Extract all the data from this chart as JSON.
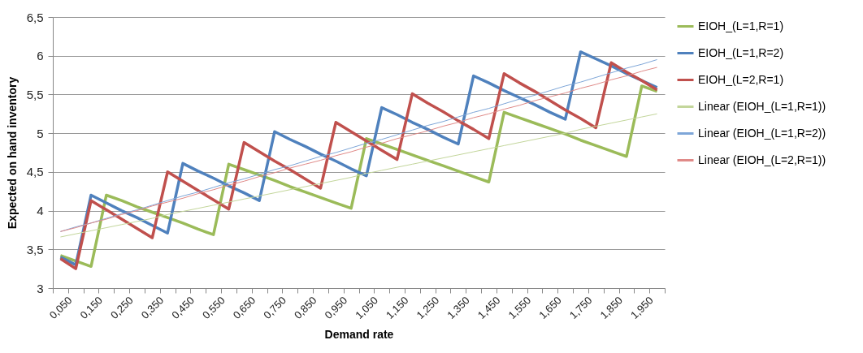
{
  "chart_data": {
    "type": "line",
    "xlabel": "Demand rate",
    "ylabel": "Expected on hand inventory",
    "categories": [
      "0,050",
      null,
      "0,150",
      null,
      "0,250",
      null,
      "0,350",
      null,
      "0,450",
      null,
      "0,550",
      null,
      "0,650",
      null,
      "0,750",
      null,
      "0,850",
      null,
      "0,950",
      null,
      "1,050",
      null,
      "1,150",
      null,
      "1,250",
      null,
      "1,350",
      null,
      "1,450",
      null,
      "1,550",
      null,
      "1,650",
      null,
      "1,750",
      null,
      "1,850",
      null,
      "1,950",
      null
    ],
    "series": [
      {
        "name": "EIOH_(L=1,R=1)",
        "color": "#9bbb59",
        "values": [
          3.42,
          3.35,
          3.28,
          4.2,
          4.13,
          4.05,
          3.98,
          3.91,
          3.84,
          3.76,
          3.69,
          4.6,
          4.53,
          4.46,
          4.39,
          4.31,
          4.24,
          4.17,
          4.1,
          4.03,
          4.93,
          4.86,
          4.79,
          4.72,
          4.65,
          4.58,
          4.51,
          4.44,
          4.37,
          5.27,
          5.2,
          5.13,
          5.06,
          4.99,
          4.91,
          4.84,
          4.77,
          4.7,
          5.61,
          5.54
        ]
      },
      {
        "name": "EIOH_(L=1,R=2)",
        "color": "#4f81bd",
        "values": [
          3.4,
          3.3,
          4.2,
          4.1,
          4.0,
          3.91,
          3.81,
          3.71,
          4.61,
          4.51,
          4.42,
          4.32,
          4.23,
          4.13,
          5.02,
          4.92,
          4.83,
          4.73,
          4.64,
          4.54,
          4.45,
          5.33,
          5.24,
          5.14,
          5.05,
          4.95,
          4.86,
          5.74,
          5.65,
          5.55,
          5.46,
          5.37,
          5.27,
          5.18,
          6.05,
          5.96,
          5.87,
          5.77,
          5.68,
          5.59
        ]
      },
      {
        "name": "EIOH_(L=2,R=1)",
        "color": "#c0504d",
        "values": [
          3.38,
          3.25,
          4.13,
          4.01,
          3.89,
          3.77,
          3.65,
          4.5,
          4.38,
          4.26,
          4.14,
          4.02,
          4.88,
          4.76,
          4.64,
          4.53,
          4.41,
          4.29,
          5.14,
          5.02,
          4.9,
          4.78,
          4.66,
          5.51,
          5.39,
          5.28,
          5.16,
          5.05,
          4.93,
          5.77,
          5.65,
          5.54,
          5.42,
          5.3,
          5.19,
          5.07,
          5.91,
          5.79,
          5.68,
          5.56
        ]
      },
      {
        "name": "Linear (EIOH_(L=1,R=1))",
        "color": "#c3d69b",
        "values": [
          3.66,
          3.7,
          3.74,
          3.78,
          3.82,
          3.86,
          3.9,
          3.95,
          3.99,
          4.03,
          4.07,
          4.11,
          4.15,
          4.19,
          4.23,
          4.27,
          4.31,
          4.35,
          4.39,
          4.43,
          4.48,
          4.52,
          4.56,
          4.6,
          4.64,
          4.68,
          4.72,
          4.76,
          4.8,
          4.84,
          4.88,
          4.92,
          4.96,
          5.0,
          5.05,
          5.09,
          5.13,
          5.17,
          5.21,
          5.25
        ]
      },
      {
        "name": "Linear (EIOH_(L=1,R=2))",
        "color": "#7ea6d8",
        "values": [
          3.73,
          3.79,
          3.84,
          3.9,
          3.96,
          4.01,
          4.07,
          4.13,
          4.19,
          4.24,
          4.3,
          4.36,
          4.41,
          4.47,
          4.53,
          4.58,
          4.64,
          4.7,
          4.75,
          4.81,
          4.87,
          4.92,
          4.98,
          5.04,
          5.1,
          5.15,
          5.21,
          5.27,
          5.32,
          5.38,
          5.44,
          5.49,
          5.55,
          5.61,
          5.66,
          5.72,
          5.78,
          5.84,
          5.89,
          5.95
        ]
      },
      {
        "name": "Linear (EIOH_(L=2,R=1))",
        "color": "#e08a88",
        "values": [
          3.73,
          3.78,
          3.84,
          3.89,
          3.95,
          4.0,
          4.06,
          4.11,
          4.16,
          4.22,
          4.27,
          4.33,
          4.38,
          4.44,
          4.49,
          4.55,
          4.6,
          4.65,
          4.71,
          4.76,
          4.82,
          4.87,
          4.93,
          4.98,
          5.03,
          5.09,
          5.14,
          5.2,
          5.25,
          5.31,
          5.36,
          5.42,
          5.47,
          5.52,
          5.58,
          5.63,
          5.69,
          5.74,
          5.8,
          5.85
        ]
      }
    ],
    "ylim": [
      3,
      6.5
    ],
    "yticks": [
      3,
      {
        "value": 3.5,
        "label": "3,5"
      },
      4,
      {
        "value": 4.5,
        "label": "4,5"
      },
      5,
      {
        "value": 5.5,
        "label": "5,5"
      },
      6,
      {
        "value": 6.5,
        "label": "6,5"
      }
    ],
    "grid": "y",
    "legend": "right",
    "marker": "none",
    "line_style": "solid"
  }
}
